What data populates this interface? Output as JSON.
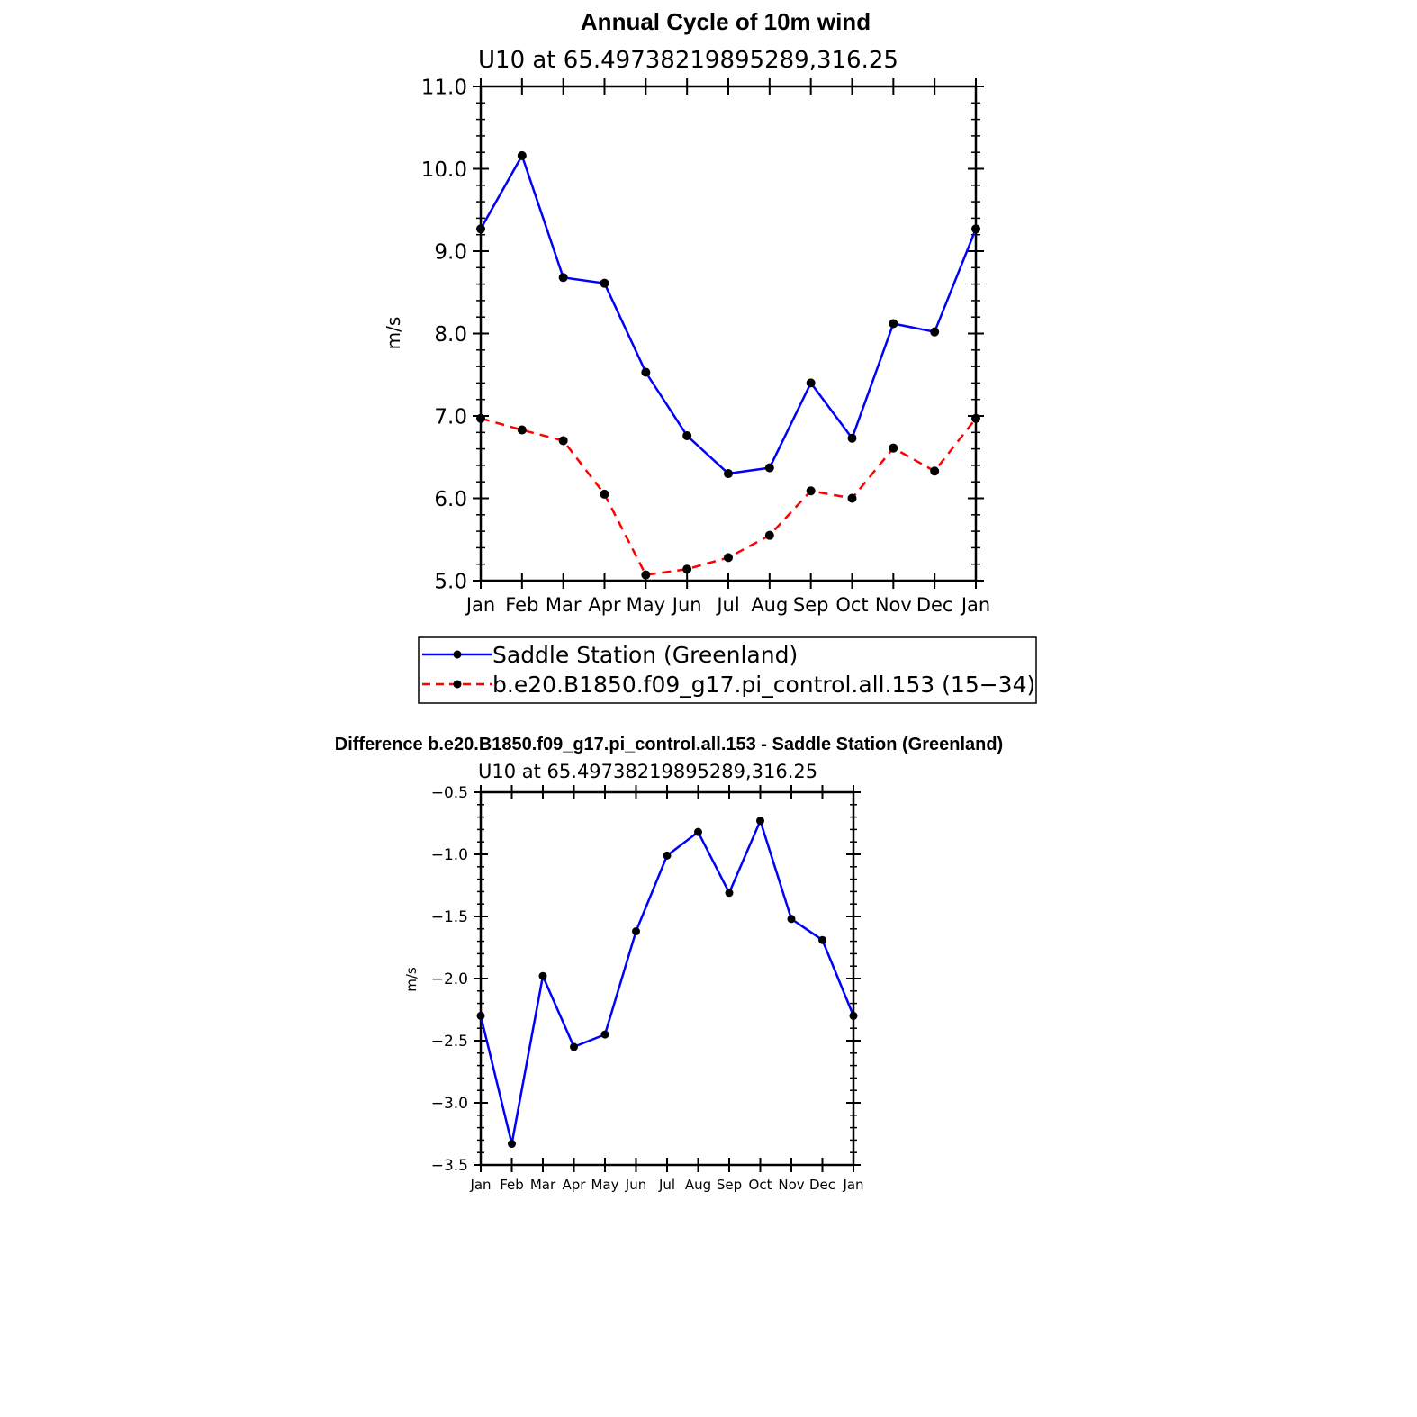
{
  "chart_data": [
    {
      "type": "line",
      "title": "Annual Cycle of 10m wind",
      "subtitle": "U10  at  65.49738219895289,316.25",
      "ylabel": "m/s",
      "xlabel": "",
      "categories": [
        "Jan",
        "Feb",
        "Mar",
        "Apr",
        "May",
        "Jun",
        "Jul",
        "Aug",
        "Sep",
        "Oct",
        "Nov",
        "Dec",
        "Jan"
      ],
      "ylim": [
        5.0,
        11.0
      ],
      "yticks": [
        "5.0",
        "6.0",
        "7.0",
        "8.0",
        "9.0",
        "10.0",
        "11.0"
      ],
      "series": [
        {
          "name": "Saddle Station (Greenland)",
          "color": "#0000ff",
          "dash": "solid",
          "values": [
            9.27,
            10.16,
            8.68,
            8.61,
            7.53,
            6.76,
            6.3,
            6.37,
            7.4,
            6.73,
            8.12,
            8.02,
            9.27
          ]
        },
        {
          "name": "b.e20.B1850.f09_g17.pi_control.all.153 (15−34)",
          "color": "#ff0000",
          "dash": "dashed",
          "values": [
            6.97,
            6.83,
            6.7,
            6.05,
            5.07,
            5.14,
            5.28,
            5.55,
            6.09,
            6.0,
            6.61,
            6.33,
            6.97
          ]
        }
      ],
      "legend": "below"
    },
    {
      "type": "line",
      "title": "Difference b.e20.B1850.f09_g17.pi_control.all.153 - Saddle Station (Greenland)",
      "subtitle": "U10  at  65.49738219895289,316.25",
      "ylabel": "m/s",
      "xlabel": "",
      "categories": [
        "Jan",
        "Feb",
        "Mar",
        "Apr",
        "May",
        "Jun",
        "Jul",
        "Aug",
        "Sep",
        "Oct",
        "Nov",
        "Dec",
        "Jan"
      ],
      "ylim": [
        -3.5,
        -0.5
      ],
      "yticks": [
        "−3.5",
        "−3.0",
        "−2.5",
        "−2.0",
        "−1.5",
        "−1.0",
        "−0.5"
      ],
      "series": [
        {
          "color": "#0000ff",
          "dash": "solid",
          "values": [
            -2.3,
            -3.33,
            -1.98,
            -2.55,
            -2.45,
            -1.62,
            -1.01,
            -0.82,
            -1.31,
            -0.73,
            -1.52,
            -1.69,
            -2.3
          ]
        }
      ]
    }
  ]
}
